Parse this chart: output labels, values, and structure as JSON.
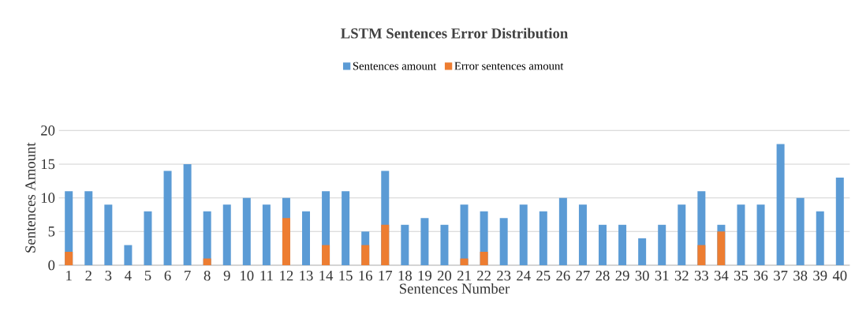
{
  "chart_data": {
    "type": "bar",
    "title": "LSTM Sentences Error Distribution",
    "xlabel": "Sentences Number",
    "ylabel": "Sentences Amount",
    "categories": [
      "1",
      "2",
      "3",
      "4",
      "5",
      "6",
      "7",
      "8",
      "9",
      "10",
      "11",
      "12",
      "13",
      "14",
      "15",
      "16",
      "17",
      "18",
      "19",
      "20",
      "21",
      "22",
      "23",
      "24",
      "25",
      "26",
      "27",
      "28",
      "29",
      "30",
      "31",
      "32",
      "33",
      "34",
      "35",
      "36",
      "37",
      "38",
      "39",
      "40"
    ],
    "series": [
      {
        "name": "Sentences amount",
        "color": "#5b9bd5",
        "values": [
          11,
          11,
          9,
          3,
          8,
          14,
          15,
          8,
          9,
          10,
          9,
          10,
          8,
          11,
          11,
          5,
          14,
          6,
          7,
          6,
          9,
          8,
          7,
          9,
          8,
          10,
          9,
          6,
          6,
          4,
          6,
          9,
          11,
          6,
          9,
          9,
          18,
          10,
          8,
          13
        ]
      },
      {
        "name": "Error sentences amount",
        "color": "#ed7d31",
        "values": [
          2,
          null,
          null,
          null,
          null,
          null,
          null,
          1,
          null,
          null,
          null,
          7,
          null,
          3,
          null,
          3,
          6,
          null,
          null,
          null,
          1,
          2,
          null,
          null,
          null,
          null,
          null,
          null,
          null,
          null,
          null,
          null,
          3,
          5,
          null,
          null,
          null,
          null,
          null,
          null
        ]
      }
    ],
    "ylim": [
      0,
      20
    ],
    "yticks": [
      0,
      5,
      10,
      15,
      20
    ],
    "grid": "y",
    "legend": "top"
  }
}
